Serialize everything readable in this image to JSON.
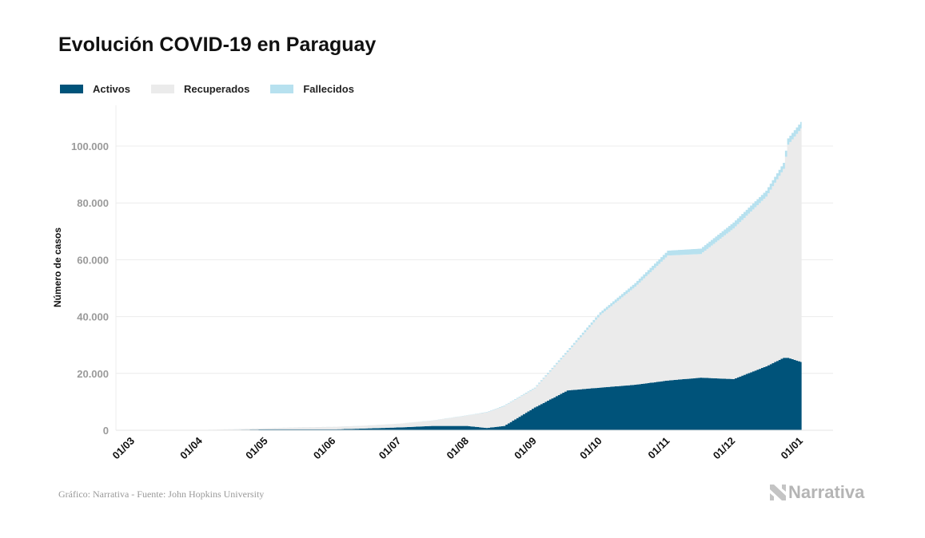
{
  "chart_data": {
    "type": "area",
    "stacked": true,
    "title": "Evolución COVID-19 en Paraguay",
    "xlabel": "",
    "ylabel": "Número de casos",
    "ylim": [
      0,
      110000
    ],
    "yticks": [
      0,
      20000,
      40000,
      60000,
      80000,
      100000
    ],
    "ytick_labels": [
      "0",
      "20.000",
      "40.000",
      "60.000",
      "80.000",
      "100.000"
    ],
    "xticks": [
      "01/03",
      "01/04",
      "01/05",
      "01/06",
      "01/07",
      "01/08",
      "01/09",
      "01/10",
      "01/11",
      "01/12",
      "01/01"
    ],
    "grid": true,
    "legend_position": "top-left",
    "x_days_from_mar1": [
      0,
      15,
      31,
      45,
      61,
      76,
      92,
      106,
      122,
      137,
      153,
      162,
      170,
      184,
      199,
      214,
      230,
      245,
      260,
      275,
      290,
      298,
      300,
      306
    ],
    "series": [
      {
        "name": "Activos",
        "color": "#00537a",
        "values": [
          0,
          10,
          70,
          150,
          300,
          300,
          300,
          600,
          1000,
          1500,
          1500,
          800,
          1500,
          8000,
          14000,
          15000,
          16000,
          17500,
          18500,
          18000,
          22500,
          25500,
          25500,
          24000
        ]
      },
      {
        "name": "Recuperados",
        "color": "#ebebeb",
        "values": [
          0,
          0,
          10,
          200,
          400,
          700,
          900,
          1000,
          1300,
          1900,
          3700,
          5500,
          7000,
          6700,
          13500,
          25600,
          34500,
          44000,
          43500,
          53000,
          59700,
          66500,
          75000,
          82200
        ]
      },
      {
        "name": "Fallecidos",
        "color": "#b7e1ef",
        "values": [
          0,
          0,
          5,
          10,
          11,
          11,
          15,
          20,
          25,
          40,
          70,
          120,
          200,
          300,
          550,
          900,
          1300,
          1700,
          1900,
          2100,
          2100,
          2100,
          2200,
          2300
        ]
      }
    ]
  },
  "footer": {
    "source": "Gráfico: Narrativa - Fuente: John Hopkins University"
  },
  "logo": {
    "text": "Narrativa"
  }
}
